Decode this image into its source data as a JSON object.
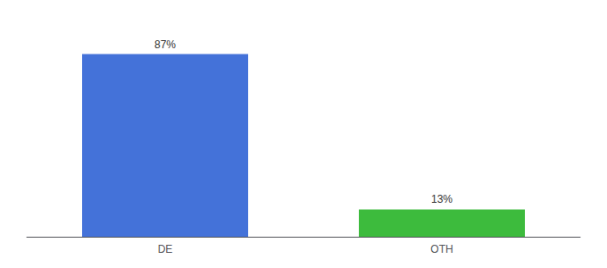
{
  "chart_data": {
    "type": "bar",
    "categories": [
      "DE",
      "OTH"
    ],
    "values": [
      87,
      13
    ],
    "value_labels": [
      "87%",
      "13%"
    ],
    "colors": [
      "#4472d9",
      "#3dbb3d"
    ],
    "ylim": [
      0,
      100
    ],
    "grid": false,
    "tick_labels": "x",
    "data_labels": true
  }
}
